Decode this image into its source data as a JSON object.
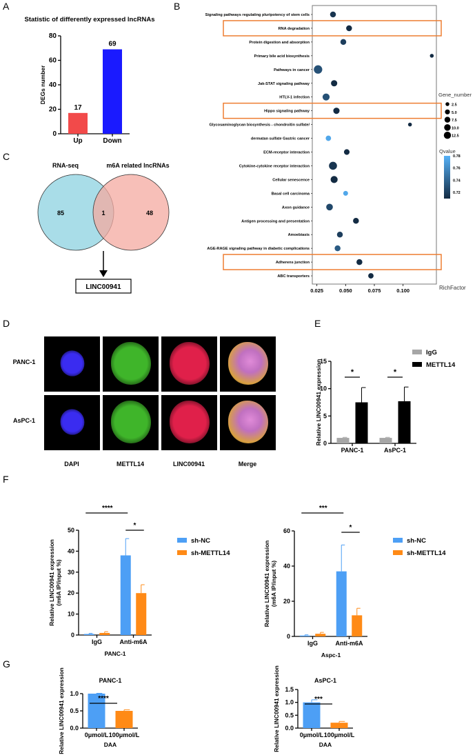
{
  "panel_labels": [
    "A",
    "B",
    "C",
    "D",
    "E",
    "F",
    "G"
  ],
  "chart_data": [
    {
      "panel": "A",
      "type": "bar",
      "title": "Statistic of differently expressed lncRNAs",
      "ylabel": "DEGs number",
      "categories": [
        "Up",
        "Down"
      ],
      "values": [
        17,
        69
      ],
      "data_labels": [
        "17",
        "69"
      ],
      "colors": [
        "#f24a4a",
        "#1a1aff"
      ],
      "ylim": [
        0,
        80
      ],
      "yticks": [
        0,
        20,
        40,
        60,
        80
      ]
    },
    {
      "panel": "B",
      "type": "scatter",
      "xlabel": "RichFactor",
      "xticks": [
        0.025,
        0.05,
        0.075,
        0.1
      ],
      "xtick_labels": [
        "0.025",
        "0.050",
        "0.075",
        "0.100"
      ],
      "xlim": [
        0.021,
        0.129
      ],
      "categories": [
        "Signaling pathways regulating pluripotency of stem cells",
        "RNA degradation",
        "Protein digestion and absorption",
        "Primary bile acid biosynthesis",
        "Pathways in cancer",
        "Jak-STAT signaling pathway",
        "HTLV-1 infection",
        "Hippo signaling pathway",
        "Glycosaminoglycan biosynthesis - chondroitin sulfate/",
        "dermatan sulfate Gastric cancer",
        "ECM-receptor interaction",
        "Cytokine-cytokine receptor interaction",
        "Cellular senescence",
        "Basal cell carcinoma",
        "Axon guidance",
        "Antigen processing and presentation",
        "Amoebiasis",
        "AGE-RAGE signaling pathway in diabetic complications",
        "Adherens junction",
        "ABC transporters"
      ],
      "rich_factor": [
        0.039,
        0.053,
        0.048,
        0.125,
        0.026,
        0.04,
        0.033,
        0.042,
        0.106,
        0.035,
        0.051,
        0.039,
        0.04,
        0.05,
        0.036,
        0.059,
        0.045,
        0.043,
        0.062,
        0.072
      ],
      "gene_number": [
        5,
        5,
        5,
        1.5,
        12.5,
        6,
        8,
        6,
        1.5,
        4,
        4.5,
        11,
        8,
        3,
        7,
        5,
        5,
        5,
        5,
        4
      ],
      "qvalue": [
        0.715,
        0.71,
        0.72,
        0.71,
        0.73,
        0.71,
        0.73,
        0.71,
        0.71,
        0.775,
        0.71,
        0.715,
        0.71,
        0.775,
        0.725,
        0.71,
        0.72,
        0.735,
        0.71,
        0.71
      ],
      "highlighted": [
        "RNA degradation",
        "Hippo signaling pathway",
        "Adherens junction"
      ],
      "highlight_color": "#ed7d31",
      "size_legend": {
        "title": "Gene_number",
        "values": [
          2.5,
          5.0,
          7.5,
          10.0,
          12.5
        ],
        "labels": [
          "2.5",
          "5.0",
          "7.5",
          "10.0",
          "12.5"
        ]
      },
      "color_legend": {
        "title": "Qvalue",
        "range": [
          0.71,
          0.78
        ],
        "ticks": [
          0.72,
          0.74,
          0.76,
          0.78
        ],
        "tick_labels": [
          "0.72",
          "0.74",
          "0.76",
          "0.78"
        ],
        "low_color": "#132b43",
        "high_color": "#56b1f7"
      },
      "legend_placement": "right"
    },
    {
      "panel": "E",
      "type": "bar",
      "ylabel": "Relative LINC00941 expression",
      "categories": [
        "PANC-1",
        "AsPC-1"
      ],
      "series": [
        {
          "name": "IgG",
          "values": [
            1.0,
            1.0
          ],
          "errors": [
            0.1,
            0.1
          ],
          "color": "#a6a6a6"
        },
        {
          "name": "METTL14",
          "values": [
            7.5,
            7.7
          ],
          "errors": [
            2.7,
            2.6
          ],
          "color": "#000000"
        }
      ],
      "significance": [
        "*",
        "*"
      ],
      "ylim": [
        0,
        15
      ],
      "yticks": [
        0,
        5,
        10,
        15
      ],
      "legend_placement": "top-right"
    },
    {
      "panel": "F",
      "type": "bar",
      "ylabel": "Relative LINC00941 expression\n(m6A IP/input %)",
      "xlabel": "PANC-1",
      "categories": [
        "IgG",
        "Anti-m6A"
      ],
      "series": [
        {
          "name": "sh-NC",
          "values": [
            0.5,
            38
          ],
          "errors": [
            0.3,
            8
          ],
          "color": "#4d9ff5"
        },
        {
          "name": "sh-METTL14",
          "values": [
            1.0,
            20
          ],
          "errors": [
            0.6,
            4
          ],
          "color": "#ff8a16"
        }
      ],
      "significance": [
        {
          "label": "****",
          "between": "IgG sh-NC vs Anti-m6A sh-NC"
        },
        {
          "label": "*",
          "between": "Anti-m6A sh-NC vs sh-METTL14"
        }
      ],
      "ylim": [
        0,
        50
      ],
      "yticks": [
        0,
        10,
        20,
        30,
        40,
        50
      ],
      "legend_placement": "right"
    },
    {
      "panel": "F",
      "type": "bar",
      "ylabel": "Relative LINC00941 expression\n(m6A IP/input %)",
      "xlabel": "Aspc-1",
      "categories": [
        "IgG",
        "Anti-m6A"
      ],
      "series": [
        {
          "name": "sh-NC",
          "values": [
            0.5,
            37
          ],
          "errors": [
            0.4,
            15
          ],
          "color": "#4d9ff5"
        },
        {
          "name": "sh-METTL14",
          "values": [
            1.5,
            12
          ],
          "errors": [
            0.8,
            4
          ],
          "color": "#ff8a16"
        }
      ],
      "significance": [
        {
          "label": "***",
          "between": "IgG sh-NC vs Anti-m6A sh-NC"
        },
        {
          "label": "*",
          "between": "Anti-m6A sh-NC vs sh-METTL14"
        }
      ],
      "ylim": [
        0,
        60
      ],
      "yticks": [
        0,
        20,
        40,
        60
      ],
      "legend_placement": "right"
    },
    {
      "panel": "G",
      "type": "bar",
      "title": "PANC-1",
      "ylabel": "Relative LINC00941 expression",
      "xlabel": "DAA",
      "categories": [
        "0μmol/L",
        "100μmol/L"
      ],
      "values": [
        1.0,
        0.5
      ],
      "errors": [
        0.01,
        0.03
      ],
      "colors": [
        "#4d9ff5",
        "#ff8a16"
      ],
      "significance": "****",
      "ylim": [
        0,
        1.0
      ],
      "yticks": [
        0.0,
        0.5,
        1.0
      ],
      "ytick_labels": [
        "0.0",
        "0.5",
        "1.0"
      ]
    },
    {
      "panel": "G",
      "type": "bar",
      "title": "AsPC-1",
      "ylabel": "Relative LINC00941 expression",
      "xlabel": "DAA",
      "categories": [
        "0μmol/L",
        "100μmol/L"
      ],
      "values": [
        1.0,
        0.21
      ],
      "errors": [
        0.1,
        0.05
      ],
      "colors": [
        "#4d9ff5",
        "#ff8a16"
      ],
      "significance": "***",
      "ylim": [
        0,
        1.5
      ],
      "yticks": [
        0.0,
        0.5,
        1.0,
        1.5
      ],
      "ytick_labels": [
        "0.0",
        "0.5",
        "1.0",
        "1.5"
      ]
    }
  ],
  "venn": {
    "left_label": "RNA-seq",
    "right_label": "m6A related lncRNAs",
    "left_only": "85",
    "overlap": "1",
    "right_only": "48",
    "left_color": "#a9dde8",
    "right_color": "#f4aaa0",
    "result": "LINC00941"
  },
  "microscopy": {
    "rows": [
      "PANC-1",
      "AsPC-1"
    ],
    "columns": [
      "DAPI",
      "METTL14",
      "LINC00941",
      "Merge"
    ],
    "channel_colors": [
      "#3a2cf0",
      "#3fb52a",
      "#e0204a",
      "#d9a35a"
    ]
  }
}
